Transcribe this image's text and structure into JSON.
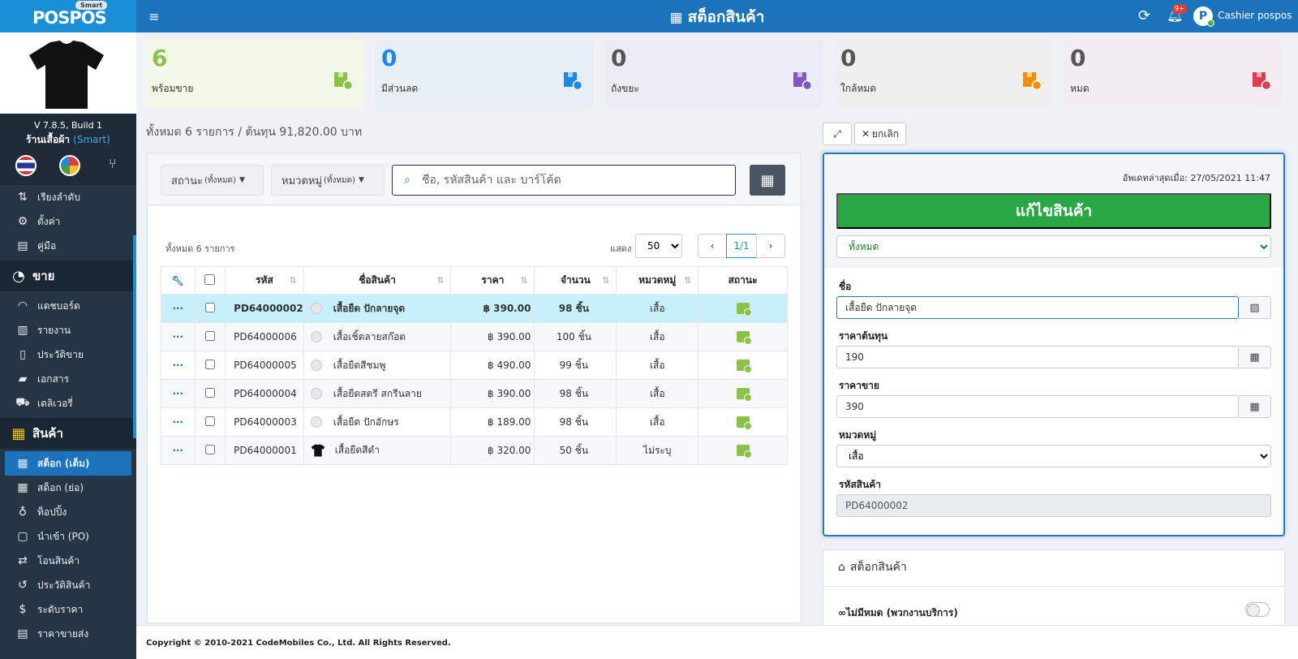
{
  "logo": {
    "text": "POSPOS",
    "badge": "Smart"
  },
  "header": {
    "title": "สต็อกสินค้า",
    "notification_badge": "9+",
    "user": "Cashier pospos",
    "avatar_letter": "P"
  },
  "sidebar": {
    "version": "V 7.8.5, Build 1",
    "shop_name": "ร้านเสื้อผ้า",
    "shop_plan": "(Smart)",
    "top_items": [
      {
        "label": "เรียงลำดับ",
        "icon": "sort-icon"
      },
      {
        "label": "ตั้งค่า",
        "icon": "gear-icon"
      },
      {
        "label": "คู่มือ",
        "icon": "book-icon"
      }
    ],
    "section_sell": "ขาย",
    "sell_items": [
      {
        "label": "แดชบอร์ด",
        "icon": "dashboard-icon"
      },
      {
        "label": "รายงาน",
        "icon": "chart-icon"
      },
      {
        "label": "ประวัติขาย",
        "icon": "receipt-icon"
      },
      {
        "label": "เอกสาร",
        "icon": "folder-icon"
      },
      {
        "label": "เดลิเวอรี่",
        "icon": "truck-icon"
      }
    ],
    "section_product": "สินค้า",
    "product_items": [
      {
        "label": "สต็อก (เต็ม)",
        "icon": "stock-icon"
      },
      {
        "label": "สต็อก (ย่อ)",
        "icon": "stock-small-icon"
      },
      {
        "label": "ท็อปปิ้ง",
        "icon": "topping-icon"
      },
      {
        "label": "นำเข้า (PO)",
        "icon": "po-icon"
      },
      {
        "label": "โอนสินค้า",
        "icon": "transfer-icon"
      },
      {
        "label": "ประวัติสินค้า",
        "icon": "history-icon"
      },
      {
        "label": "ระดับราคา",
        "icon": "price-level-icon"
      },
      {
        "label": "ราคาขายส่ง",
        "icon": "wholesale-icon"
      }
    ]
  },
  "stats": [
    {
      "value": "6",
      "label": "พร้อมขาย",
      "color": "#8bc34a",
      "bg": "#f3f9e9"
    },
    {
      "value": "0",
      "label": "มีส่วนลด",
      "color": "#1e88e5",
      "bg": "#e8eef6"
    },
    {
      "value": "0",
      "label": "ถังขยะ",
      "color": "#7e57c2",
      "bg": "#ebedf6"
    },
    {
      "value": "0",
      "label": "ใกล้หมด",
      "color": "#fb8c00",
      "bg": "#efefef"
    },
    {
      "value": "0",
      "label": "หมด",
      "color": "#e53950",
      "bg": "#f3ecf0"
    }
  ],
  "summary": "ทั้งหมด 6 รายการ / ต้นทุน 91,820.00 บาท",
  "filters": {
    "status_label": "สถานะ",
    "status_value": "(ทั้งหมด)",
    "category_label": "หมวดหมู่",
    "category_value": "(ทั้งหมด)",
    "search_placeholder": "ชื่อ, รหัสสินค้า และ บาร์โค้ด"
  },
  "list": {
    "count": "ทั้งหมด 6 รายการ",
    "show_label": "แสดง",
    "page_size": "50",
    "page": "1/1"
  },
  "table": {
    "columns": {
      "code": "รหัส",
      "name": "ชื่อสินค้า",
      "price": "ราคา",
      "qty": "จำนวน",
      "category": "หมวดหมู่",
      "status": "สถานะ"
    },
    "rows": [
      {
        "code": "PD64000002",
        "name": "เสื้อยืด ปักลายจุด",
        "price": "฿ 390.00",
        "qty": "98 ชิ้น",
        "category": "เสื้อ",
        "thumb": "placeholder"
      },
      {
        "code": "PD64000006",
        "name": "เสื้อเชิ้ตลายสก๊อต",
        "price": "฿ 390.00",
        "qty": "100 ชิ้น",
        "category": "เสื้อ",
        "thumb": "placeholder"
      },
      {
        "code": "PD64000005",
        "name": "เสื้อยืดสีชมพู",
        "price": "฿ 490.00",
        "qty": "99 ชิ้น",
        "category": "เสื้อ",
        "thumb": "placeholder"
      },
      {
        "code": "PD64000004",
        "name": "เสื้อยืดสตรี สกรีนลาย",
        "price": "฿ 390.00",
        "qty": "98 ชิ้น",
        "category": "เสื้อ",
        "thumb": "placeholder"
      },
      {
        "code": "PD64000003",
        "name": "เสื้อยืด ปักอักษร",
        "price": "฿ 189.00",
        "qty": "98 ชิ้น",
        "category": "เสื้อ",
        "thumb": "placeholder"
      },
      {
        "code": "PD64000001",
        "name": "เสื้อยืดสีดำ",
        "price": "฿ 320.00",
        "qty": "50 ชิ้น",
        "category": "ไม่ระบุ",
        "thumb": "shirt"
      }
    ]
  },
  "panel": {
    "cancel_label": "ยกเลิก",
    "updated": "อัพเดทล่าสุดเมื่อ: 27/05/2021 11:47",
    "edit_button": "แก้ไขสินค้า",
    "scope": "ทั้งหมด",
    "name_label": "ชื่อ",
    "name_value": "เสื้อยืด ปักลายจุด",
    "cost_label": "ราคาต้นทุน",
    "cost_value": "190",
    "sell_label": "ราคาขาย",
    "sell_value": "390",
    "category_label": "หมวดหมู่",
    "category_value": "เสื้อ",
    "code_label": "รหัสสินค้า",
    "code_value": "PD64000002"
  },
  "stock_panel": {
    "title": "สต็อกสินค้า",
    "no_stock_label": "∞ไม่มีหมด (พวกงานบริการ)"
  },
  "footer": "Copyright © 2010-2021 CodeMobiles Co., Ltd. All Rights Reserved."
}
